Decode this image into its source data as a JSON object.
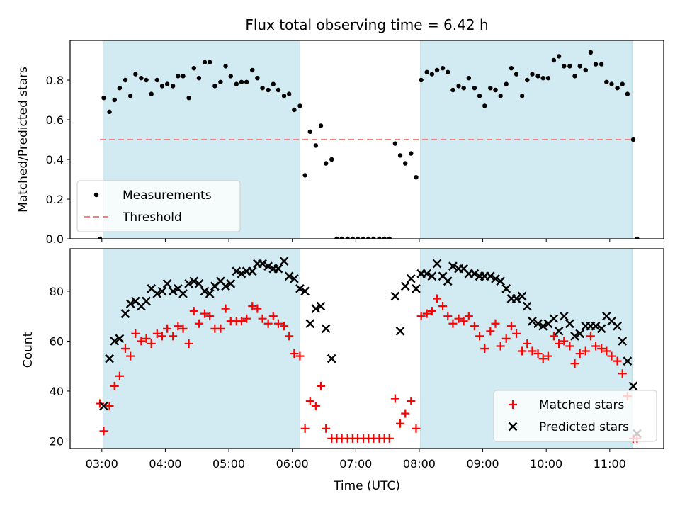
{
  "figure": {
    "title": "Flux total observing time = 6.42 h",
    "xlabel": "Time (UTC)",
    "x_ticks": [
      "03:00",
      "04:00",
      "05:00",
      "06:00",
      "07:00",
      "08:00",
      "09:00",
      "10:00",
      "11:00"
    ],
    "observing_windows": [
      [
        3.02,
        6.12
      ],
      [
        8.02,
        11.35
      ]
    ],
    "window_color": "#add8e6"
  },
  "chart_data": [
    {
      "type": "scatter",
      "ylabel": "Matched/Predicted stars",
      "xlim": [
        2.5,
        11.85
      ],
      "ylim": [
        0,
        1.0
      ],
      "y_ticks": [
        "0.0",
        "0.2",
        "0.4",
        "0.6",
        "0.8"
      ],
      "legend_position": "lower-left",
      "series": [
        {
          "name": "Measurements",
          "color": "#000000",
          "marker": "dot",
          "x": [
            2.97,
            3.03,
            3.12,
            3.2,
            3.28,
            3.37,
            3.45,
            3.53,
            3.62,
            3.7,
            3.78,
            3.87,
            3.95,
            4.03,
            4.12,
            4.2,
            4.28,
            4.37,
            4.45,
            4.53,
            4.62,
            4.7,
            4.78,
            4.87,
            4.95,
            5.03,
            5.12,
            5.2,
            5.28,
            5.37,
            5.45,
            5.53,
            5.62,
            5.7,
            5.78,
            5.87,
            5.95,
            6.03,
            6.12,
            6.2,
            6.28,
            6.37,
            6.45,
            6.53,
            6.62,
            6.7,
            6.78,
            6.87,
            6.95,
            7.03,
            7.12,
            7.2,
            7.28,
            7.37,
            7.45,
            7.53,
            7.62,
            7.7,
            7.78,
            7.87,
            7.95,
            8.03,
            8.12,
            8.2,
            8.28,
            8.37,
            8.45,
            8.53,
            8.62,
            8.7,
            8.78,
            8.87,
            8.95,
            9.03,
            9.12,
            9.2,
            9.28,
            9.37,
            9.45,
            9.53,
            9.62,
            9.7,
            9.78,
            9.87,
            9.95,
            10.03,
            10.12,
            10.2,
            10.28,
            10.37,
            10.45,
            10.53,
            10.62,
            10.7,
            10.78,
            10.87,
            10.95,
            11.03,
            11.12,
            11.2,
            11.28,
            11.37,
            11.43
          ],
          "y": [
            0.0,
            0.71,
            0.64,
            0.7,
            0.76,
            0.8,
            0.72,
            0.83,
            0.81,
            0.8,
            0.73,
            0.8,
            0.77,
            0.78,
            0.77,
            0.82,
            0.82,
            0.71,
            0.86,
            0.81,
            0.89,
            0.89,
            0.77,
            0.79,
            0.87,
            0.82,
            0.78,
            0.79,
            0.79,
            0.85,
            0.81,
            0.76,
            0.75,
            0.78,
            0.75,
            0.72,
            0.73,
            0.65,
            0.67,
            0.32,
            0.54,
            0.47,
            0.57,
            0.38,
            0.4,
            0.0,
            0.0,
            0.0,
            0.0,
            0.0,
            0.0,
            0.0,
            0.0,
            0.0,
            0.0,
            0.0,
            0.48,
            0.42,
            0.38,
            0.43,
            0.31,
            0.8,
            0.84,
            0.83,
            0.85,
            0.86,
            0.84,
            0.75,
            0.77,
            0.76,
            0.81,
            0.76,
            0.72,
            0.67,
            0.76,
            0.75,
            0.72,
            0.78,
            0.86,
            0.83,
            0.72,
            0.8,
            0.83,
            0.82,
            0.81,
            0.81,
            0.9,
            0.92,
            0.87,
            0.87,
            0.82,
            0.87,
            0.85,
            0.94,
            0.88,
            0.88,
            0.79,
            0.78,
            0.76,
            0.78,
            0.73,
            0.5,
            0.0
          ]
        },
        {
          "name": "Threshold",
          "color": "#f08080",
          "style": "dashed",
          "x": [
            2.97,
            11.37
          ],
          "y": [
            0.5,
            0.5
          ]
        }
      ]
    },
    {
      "type": "scatter",
      "ylabel": "Count",
      "xlim": [
        2.5,
        11.85
      ],
      "ylim": [
        17,
        97
      ],
      "y_ticks": [
        "20",
        "40",
        "60",
        "80"
      ],
      "legend_position": "lower-right",
      "series": [
        {
          "name": "Matched stars",
          "color": "#ff0000",
          "marker": "plus",
          "x": [
            2.97,
            3.03,
            3.12,
            3.2,
            3.28,
            3.37,
            3.45,
            3.53,
            3.62,
            3.7,
            3.78,
            3.87,
            3.95,
            4.03,
            4.12,
            4.2,
            4.28,
            4.37,
            4.45,
            4.53,
            4.62,
            4.7,
            4.78,
            4.87,
            4.95,
            5.03,
            5.12,
            5.2,
            5.28,
            5.37,
            5.45,
            5.53,
            5.62,
            5.7,
            5.78,
            5.87,
            5.95,
            6.03,
            6.12,
            6.2,
            6.28,
            6.37,
            6.45,
            6.53,
            6.62,
            6.7,
            6.78,
            6.87,
            6.95,
            7.03,
            7.12,
            7.2,
            7.28,
            7.37,
            7.45,
            7.53,
            7.62,
            7.7,
            7.78,
            7.87,
            7.95,
            8.03,
            8.12,
            8.2,
            8.28,
            8.37,
            8.45,
            8.53,
            8.62,
            8.7,
            8.78,
            8.87,
            8.95,
            9.03,
            9.12,
            9.2,
            9.28,
            9.37,
            9.45,
            9.53,
            9.62,
            9.7,
            9.78,
            9.87,
            9.95,
            10.03,
            10.12,
            10.2,
            10.28,
            10.37,
            10.45,
            10.53,
            10.62,
            10.7,
            10.78,
            10.87,
            10.95,
            11.03,
            11.12,
            11.2,
            11.28,
            11.37,
            11.43
          ],
          "y": [
            35,
            24,
            34,
            42,
            46,
            57,
            54,
            63,
            60,
            61,
            59,
            63,
            62,
            65,
            62,
            66,
            65,
            59,
            72,
            67,
            71,
            70,
            65,
            65,
            73,
            68,
            68,
            68,
            69,
            74,
            73,
            69,
            67,
            70,
            67,
            66,
            62,
            55,
            54,
            25,
            36,
            34,
            42,
            25,
            21,
            21,
            21,
            21,
            21,
            21,
            21,
            21,
            21,
            21,
            21,
            21,
            37,
            27,
            31,
            36,
            25,
            70,
            71,
            72,
            77,
            74,
            70,
            67,
            69,
            68,
            70,
            66,
            62,
            57,
            64,
            67,
            58,
            61,
            66,
            63,
            56,
            59,
            56,
            55,
            53,
            54,
            62,
            59,
            60,
            58,
            51,
            55,
            56,
            62,
            58,
            57,
            56,
            54,
            52,
            47,
            38,
            21,
            21
          ]
        },
        {
          "name": "Predicted stars",
          "color": "#000000",
          "marker": "x",
          "x": [
            3.03,
            3.12,
            3.2,
            3.28,
            3.37,
            3.45,
            3.53,
            3.62,
            3.7,
            3.78,
            3.87,
            3.95,
            4.03,
            4.12,
            4.2,
            4.28,
            4.37,
            4.45,
            4.53,
            4.62,
            4.7,
            4.78,
            4.87,
            4.95,
            5.03,
            5.12,
            5.2,
            5.28,
            5.37,
            5.45,
            5.53,
            5.62,
            5.7,
            5.78,
            5.87,
            5.95,
            6.03,
            6.12,
            6.2,
            6.28,
            6.37,
            6.45,
            6.53,
            6.62,
            7.62,
            7.7,
            7.78,
            7.87,
            7.95,
            8.03,
            8.12,
            8.2,
            8.28,
            8.37,
            8.45,
            8.53,
            8.62,
            8.7,
            8.78,
            8.87,
            8.95,
            9.03,
            9.12,
            9.2,
            9.28,
            9.37,
            9.45,
            9.53,
            9.62,
            9.7,
            9.78,
            9.87,
            9.95,
            10.03,
            10.12,
            10.2,
            10.28,
            10.37,
            10.45,
            10.53,
            10.62,
            10.7,
            10.78,
            10.87,
            10.95,
            11.03,
            11.12,
            11.2,
            11.28,
            11.37,
            11.43
          ],
          "y": [
            34,
            53,
            60,
            61,
            71,
            75,
            76,
            74,
            76,
            81,
            79,
            80,
            83,
            80,
            81,
            79,
            83,
            84,
            83,
            80,
            79,
            82,
            84,
            82,
            83,
            88,
            87,
            88,
            88,
            91,
            91,
            90,
            89,
            89,
            92,
            86,
            85,
            81,
            80,
            67,
            73,
            74,
            65,
            53,
            78,
            64,
            82,
            85,
            81,
            87,
            87,
            86,
            91,
            86,
            84,
            90,
            89,
            89,
            87,
            87,
            86,
            86,
            86,
            85,
            84,
            81,
            77,
            77,
            78,
            74,
            68,
            67,
            66,
            67,
            69,
            64,
            70,
            67,
            62,
            63,
            66,
            66,
            66,
            65,
            70,
            68,
            66,
            60,
            52,
            42,
            23
          ]
        }
      ]
    }
  ]
}
